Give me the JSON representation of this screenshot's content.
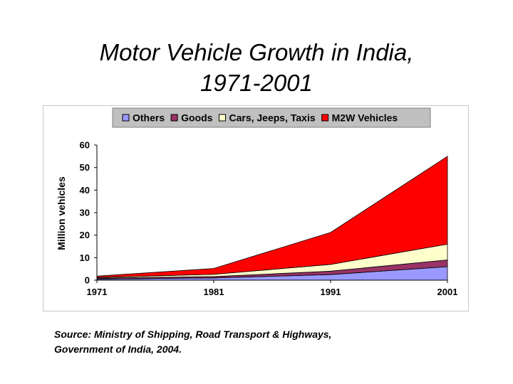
{
  "slide": {
    "title_line1": "Motor Vehicle Growth in India,",
    "title_line2": "1971-2001",
    "source_line1": "Source: Ministry of Shipping, Road Transport & Highways,",
    "source_line2": "Government of India, 2004."
  },
  "chart_data": {
    "type": "area",
    "stacked": true,
    "title": "",
    "xlabel": "",
    "ylabel": "Million vehicles",
    "categories": [
      "1971",
      "1981",
      "1991",
      "2001"
    ],
    "ylim": [
      0,
      60
    ],
    "yticks": [
      0,
      10,
      20,
      30,
      40,
      50,
      60
    ],
    "legend_position": "top",
    "series": [
      {
        "name": "Others",
        "color": "#9999ff",
        "values": [
          0.5,
          1.0,
          2.5,
          6.0
        ]
      },
      {
        "name": "Goods",
        "color": "#993366",
        "values": [
          0.4,
          0.6,
          1.5,
          3.0
        ]
      },
      {
        "name": "Cars, Jeeps, Taxis",
        "color": "#ffffcc",
        "values": [
          0.3,
          1.0,
          3.0,
          7.0
        ]
      },
      {
        "name": "M2W Vehicles",
        "color": "#ff0000",
        "values": [
          0.6,
          2.6,
          14.2,
          39.0
        ]
      }
    ]
  }
}
